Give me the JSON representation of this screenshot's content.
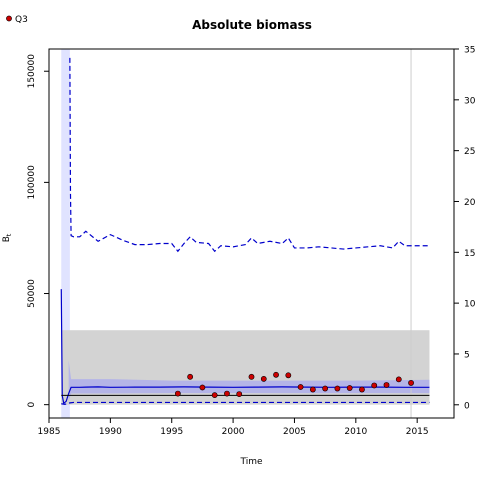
{
  "legend": {
    "label": "Q3",
    "marker_color": "#cc0000"
  },
  "chart_data": {
    "type": "line",
    "title": "Absolute biomass",
    "xlabel": "Time",
    "ylabel": "B",
    "ylabel_subscript": "t",
    "xlim": [
      1985,
      2018
    ],
    "ylim": [
      -6000,
      160000
    ],
    "y2lim": [
      -1.3,
      35
    ],
    "x_ticks": [
      1985,
      1990,
      1995,
      2000,
      2005,
      2010,
      2015
    ],
    "y_ticks": [
      0,
      50000,
      100000,
      150000
    ],
    "y2_ticks": [
      0,
      5,
      10,
      15,
      20,
      25,
      30,
      35
    ],
    "grid": false,
    "legend_position": "top-left",
    "vertical_line_x": 2014.5,
    "early_band": {
      "x_start": 1986.0,
      "x_end": 1986.7
    },
    "gray_band": {
      "x_start": 1986.0,
      "x_end": 2016.0,
      "y_low": 0,
      "y_high": 33500
    },
    "colors": {
      "estimate": "#0000cc",
      "ci_fill": "#aaaaee",
      "gray_band": "#d3d3d3",
      "points": "#cc0000",
      "reference": "#000000",
      "vline": "#cccccc"
    },
    "series": [
      {
        "role": "estimate",
        "style": "solid",
        "x": [
          1986.0,
          1986.08,
          1986.2,
          1986.4,
          1986.6,
          1986.8,
          1987.0,
          1987.5,
          1988,
          1989,
          1990,
          1992,
          1994,
          1996,
          1998,
          2000,
          2002,
          2004,
          2006,
          2008,
          2010,
          2012,
          2014,
          2016
        ],
        "values": [
          52000,
          4000,
          600,
          1500,
          5000,
          7800,
          7800,
          7800,
          7900,
          8000,
          7800,
          7900,
          7900,
          8000,
          7900,
          7800,
          7900,
          8000,
          7900,
          7800,
          7900,
          7900,
          7800,
          7800
        ]
      },
      {
        "role": "ci_upper",
        "style": "dashed",
        "x": [
          1986.7,
          1986.75,
          1986.8,
          1987.0,
          1987.5,
          1988,
          1989,
          1990,
          1991,
          1992,
          1993,
          1994,
          1995,
          1995.5,
          1996,
          1996.5,
          1997,
          1998,
          1998.5,
          1999,
          2000,
          2001,
          2001.5,
          2002,
          2003,
          2004,
          2004.5,
          2005,
          2006,
          2007,
          2008,
          2009,
          2010,
          2011,
          2012,
          2013,
          2013.5,
          2014,
          2015,
          2016
        ],
        "values": [
          156000,
          95000,
          76000,
          75500,
          75500,
          78000,
          73500,
          76500,
          74000,
          72000,
          72000,
          72500,
          72500,
          69000,
          72500,
          75500,
          73000,
          72500,
          69000,
          71500,
          71000,
          72000,
          75000,
          72500,
          73500,
          72500,
          75000,
          70500,
          70500,
          71000,
          70500,
          70000,
          70500,
          71000,
          71500,
          70500,
          73500,
          71500,
          71500,
          71500
        ]
      },
      {
        "role": "ci_lower",
        "style": "dashed",
        "x": [
          1986.0,
          1986.3,
          1986.7,
          1987.0,
          1990,
          1995,
          2000,
          2005,
          2010,
          2016
        ],
        "values": [
          400,
          150,
          800,
          1000,
          1000,
          1000,
          1000,
          1000,
          1000,
          1000
        ]
      },
      {
        "role": "reference",
        "style": "solid",
        "x": [
          1986.0,
          2016.0
        ],
        "values": [
          4200,
          4200
        ]
      }
    ],
    "ci_band": {
      "x": [
        1986.6,
        1986.8,
        1990,
        1995,
        2000,
        2005,
        2010,
        2016
      ],
      "upper": [
        20000,
        11500,
        11500,
        10800,
        10800,
        10800,
        10800,
        11200
      ],
      "lower": [
        1500,
        5000,
        5000,
        5200,
        5200,
        5200,
        5200,
        5200
      ]
    },
    "points": {
      "name": "Q3",
      "axis": "right",
      "x": [
        1995.5,
        1996.5,
        1997.5,
        1998.5,
        1999.5,
        2000.5,
        2001.5,
        2002.5,
        2003.5,
        2004.5,
        2005.5,
        2006.5,
        2007.5,
        2008.5,
        2009.5,
        2010.5,
        2011.5,
        2012.5,
        2013.5,
        2014.5
      ],
      "values": [
        1.1,
        2.75,
        1.7,
        0.95,
        1.1,
        1.05,
        2.75,
        2.55,
        2.95,
        2.9,
        1.75,
        1.5,
        1.6,
        1.6,
        1.65,
        1.5,
        1.9,
        1.95,
        2.5,
        2.15
      ]
    }
  }
}
